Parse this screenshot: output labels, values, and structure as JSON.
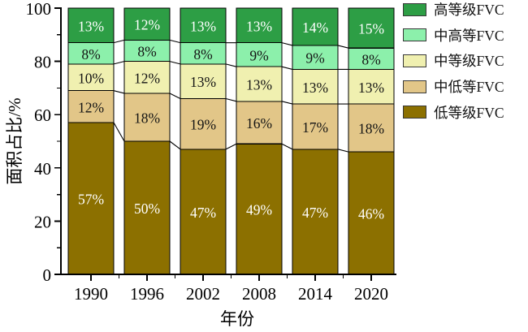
{
  "chart_data": {
    "type": "bar",
    "variant": "stacked-percentage-with-connectors",
    "title": "",
    "xlabel": "年份",
    "ylabel": "面积占比/%",
    "categories": [
      "1990",
      "1996",
      "2002",
      "2008",
      "2014",
      "2020"
    ],
    "series": [
      {
        "name": "低等级FVC",
        "color": "#8c7000",
        "label_color": "#ffffff",
        "values": [
          57,
          50,
          47,
          49,
          47,
          46
        ]
      },
      {
        "name": "中低等FVC",
        "color": "#e2c688",
        "label_color": "#141414",
        "values": [
          12,
          18,
          19,
          16,
          17,
          18
        ]
      },
      {
        "name": "中等级FVC",
        "color": "#f0f0b0",
        "label_color": "#141414",
        "values": [
          10,
          12,
          13,
          13,
          13,
          13
        ]
      },
      {
        "name": "中高等FVC",
        "color": "#8cf0ab",
        "label_color": "#141414",
        "values": [
          8,
          8,
          8,
          9,
          9,
          8
        ]
      },
      {
        "name": "高等级FVC",
        "color": "#2d9e45",
        "label_color": "#ffffff",
        "values": [
          13,
          12,
          13,
          13,
          14,
          15
        ]
      }
    ],
    "value_suffix": "%",
    "ylim": [
      0,
      100
    ],
    "yticks_major": [
      0,
      20,
      40,
      60,
      80,
      100
    ],
    "yticks_minor": [
      10,
      30,
      50,
      70,
      90
    ],
    "legend_position": "top-right",
    "grid": false,
    "axis_color": "#000000",
    "bar_outline_color": "#000000",
    "connector_color": "#000000"
  }
}
